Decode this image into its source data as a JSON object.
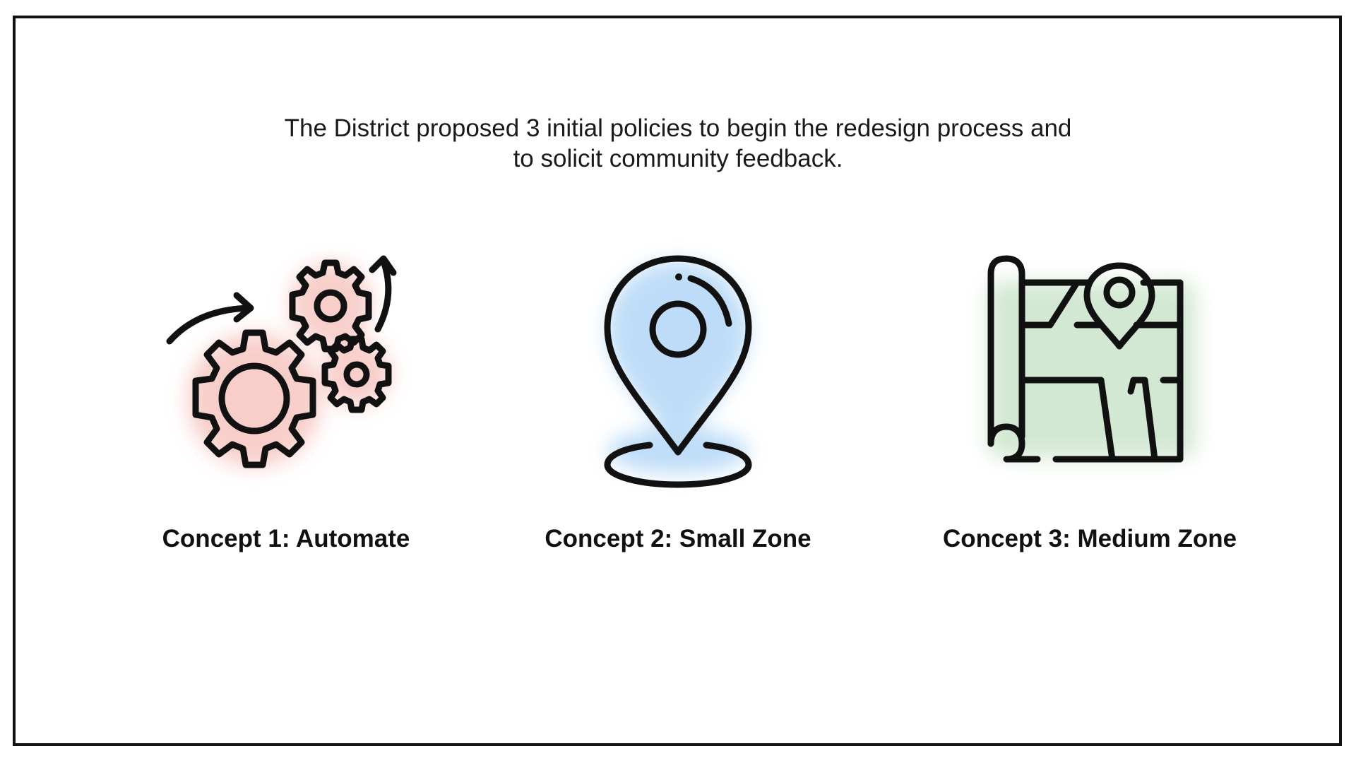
{
  "intro": {
    "line1": "The District proposed 3 initial policies to begin the redesign process and",
    "line2": "to solicit community feedback."
  },
  "concepts": [
    {
      "label": "Concept 1: Automate",
      "icon": "gears-automation-icon",
      "glow_color": "#f7c9c4"
    },
    {
      "label": "Concept 2: Small Zone",
      "icon": "location-pin-icon",
      "glow_color": "#b7d9f7"
    },
    {
      "label": "Concept 3: Medium Zone",
      "icon": "map-with-pin-icon",
      "glow_color": "#cfe6cf"
    }
  ],
  "colors": {
    "frame": "#111111",
    "text": "#111111"
  }
}
